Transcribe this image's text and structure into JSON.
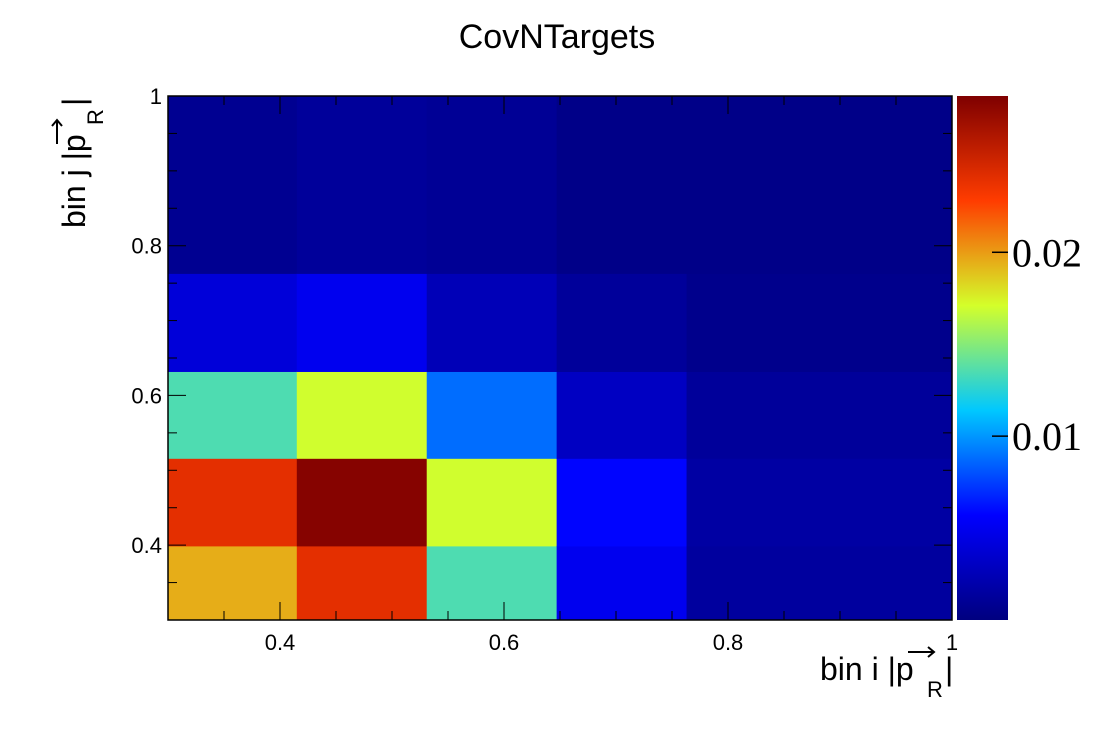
{
  "chart_data": {
    "type": "heatmap",
    "title": "CovNTargets",
    "xlabel": "bin i |p",
    "xlabel_sub": "R",
    "xlabel_close": "|",
    "ylabel": "bin j |p",
    "ylabel_sub": "R",
    "ylabel_close": "|",
    "xlim": [
      0.3,
      1.0
    ],
    "ylim": [
      0.3,
      1.0
    ],
    "x_edges": [
      0.3,
      0.415,
      0.531,
      0.647,
      0.763,
      1.0
    ],
    "y_edges": [
      0.3,
      0.399,
      0.516,
      0.632,
      0.763,
      1.0
    ],
    "values": [
      [
        0.0195,
        0.024,
        0.0135,
        0.004,
        0.0008
      ],
      [
        0.024,
        0.0282,
        0.017,
        0.005,
        0.0012
      ],
      [
        0.0135,
        0.017,
        0.0088,
        0.0025,
        0.001
      ],
      [
        0.005,
        0.0058,
        0.003,
        0.0012,
        0.0004
      ],
      [
        0.0014,
        0.0016,
        0.0012,
        0.0006,
        0.0004
      ]
    ],
    "zlim": [
      0.0,
      0.0285
    ],
    "x_ticks": [
      "0.4",
      "0.6",
      "0.8",
      "1"
    ],
    "x_tick_values": [
      0.4,
      0.6,
      0.8,
      1.0
    ],
    "y_ticks": [
      "0.4",
      "0.6",
      "0.8",
      "1"
    ],
    "y_tick_values": [
      0.4,
      0.6,
      0.8,
      1.0
    ],
    "palette_ticks": [
      "0.01",
      "0.02"
    ],
    "palette_tick_values": [
      0.01,
      0.02
    ],
    "colormap": [
      "#00007f",
      "#0000ff",
      "#00c8ff",
      "#d4ff2a",
      "#ff3c00",
      "#7f0000"
    ],
    "background": "#ffffff"
  }
}
